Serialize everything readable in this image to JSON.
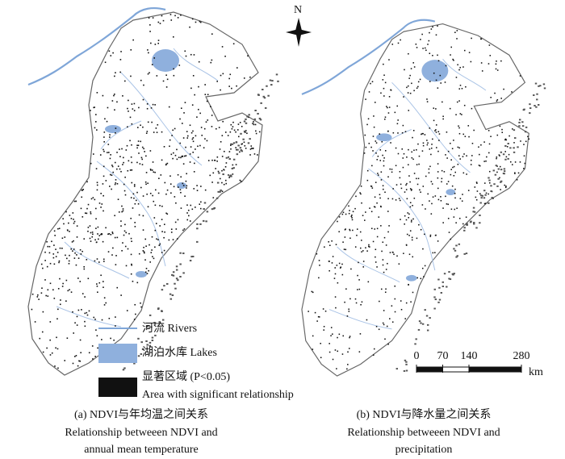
{
  "north": "N",
  "legend": {
    "rivers": "河流 Rivers",
    "lakes": "湖泊水库 Lakes",
    "significant": "显著区域 (P<0.05)",
    "significant_en": "Area with significant relationship"
  },
  "scale_bar": {
    "ticks": [
      0,
      70,
      140,
      280
    ],
    "unit": "km"
  },
  "panels": [
    {
      "caption": "(a) NDVI与年均温之间关系",
      "caption_en_1": "Relationship betweeen NDVI and",
      "caption_en_2": "annual mean temperature"
    },
    {
      "caption": "(b) NDVI与降水量之间关系",
      "caption_en_1": "Relationship betweeen NDVI and",
      "caption_en_2": "precipitation"
    }
  ]
}
